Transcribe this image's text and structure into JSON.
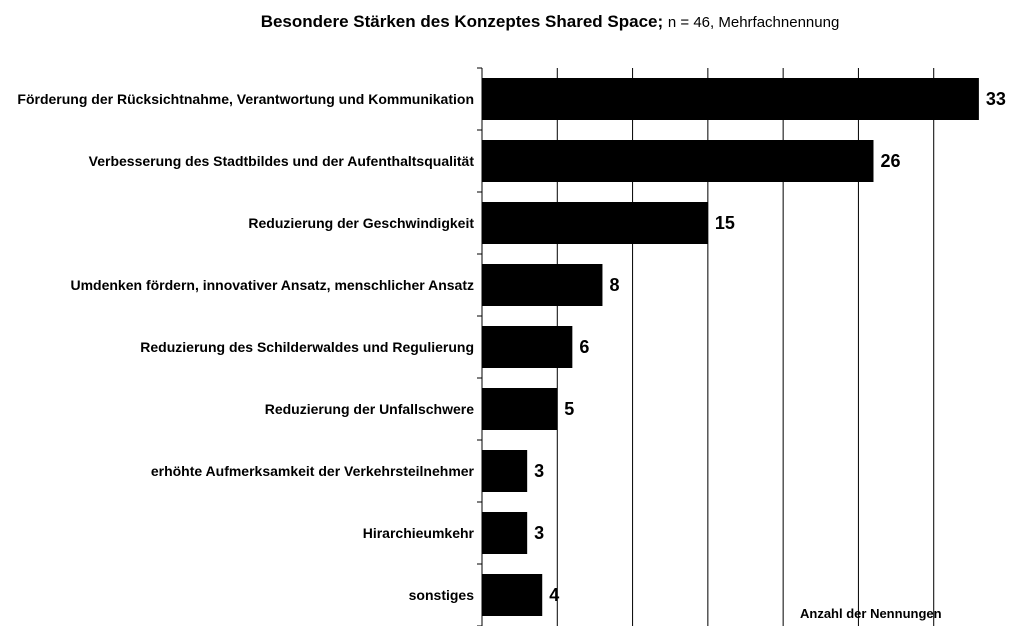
{
  "chart_data": {
    "type": "barh",
    "title": "Besondere Stärken des Konzeptes Shared Space;",
    "subtitle": "n = 46, Mehrfachnennung",
    "x_label": "Anzahl der Nennungen",
    "categories": [
      "Förderung der Rücksichtnahme, Verantwortung und Kommunikation",
      "Verbesserung des Stadtbildes und der Aufenthaltsqualität",
      "Reduzierung der Geschwindigkeit",
      "Umdenken fördern, innovativer Ansatz, menschlicher Ansatz",
      "Reduzierung des Schilderwaldes und Regulierung",
      "Reduzierung der Unfallschwere",
      "erhöhte Aufmerksamkeit der Verkehrsteilnehmer",
      "Hirarchieumkehr",
      "sonstiges"
    ],
    "values": [
      33,
      26,
      15,
      8,
      6,
      5,
      3,
      3,
      4
    ],
    "color": "#000000",
    "xlim": [
      0,
      35
    ],
    "xticks": [
      0,
      5,
      10,
      15,
      20,
      25,
      30
    ],
    "grid": true
  }
}
